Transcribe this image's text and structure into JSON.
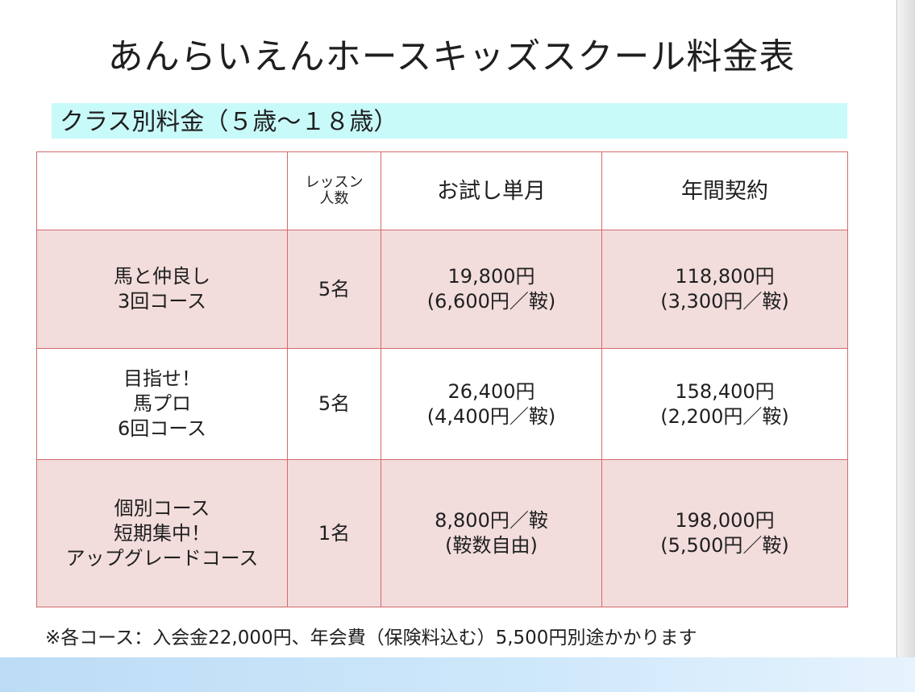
{
  "title": "あんらいえんホースキッズスクール料金表",
  "subtitle": "クラス別料金（５歳～１８歳）",
  "table": {
    "headers": [
      "",
      [
        "レッスン",
        "人数"
      ],
      "お試し単月",
      "年間契約"
    ],
    "rows": [
      {
        "course": [
          "馬と仲良し",
          "3回コース"
        ],
        "people": "5名",
        "trial": [
          "19,800円",
          "(6,600円／鞍)"
        ],
        "annual": [
          "118,800円",
          "(3,300円／鞍)"
        ]
      },
      {
        "course": [
          "目指せ！",
          "馬プロ",
          "6回コース"
        ],
        "people": "5名",
        "trial": [
          "26,400円",
          "(4,400円／鞍)"
        ],
        "annual": [
          "158,400円",
          "(2,200円／鞍)"
        ]
      },
      {
        "course": [
          "個別コース",
          "短期集中！",
          "アップグレードコース"
        ],
        "people": "1名",
        "trial": [
          "8,800円／鞍",
          "(鞍数自由)"
        ],
        "annual": [
          "198,000円",
          "(5,500円／鞍)"
        ]
      }
    ]
  },
  "footnote": "※各コース：入会金22,000円、年会費（保険料込む）5,500円別途かかります",
  "colors": {
    "subtitle_bg": "#c9fafa",
    "row_pink": "#f2dcdc",
    "border": "#d46a6a",
    "bottom_band": "#cfe8fb"
  }
}
